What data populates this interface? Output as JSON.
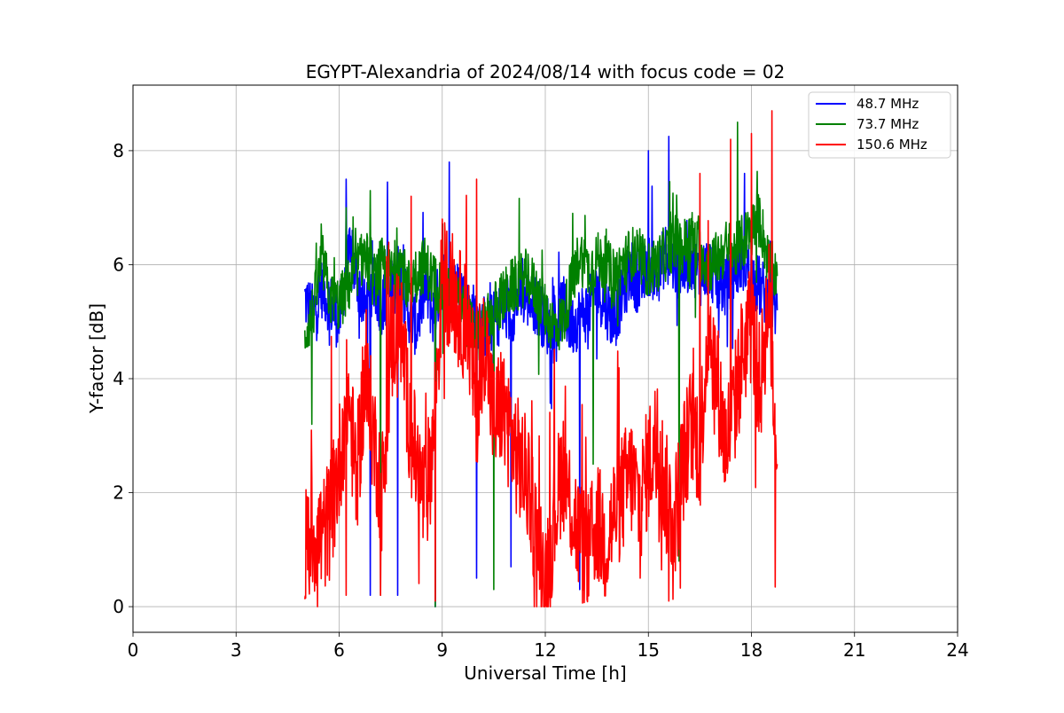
{
  "chart_data": {
    "type": "line",
    "title": "EGYPT-Alexandria of 2024/08/14 with focus code = 02",
    "xlabel": "Universal Time [h]",
    "ylabel": "Y-factor [dB]",
    "xlim": [
      0,
      24
    ],
    "ylim": [
      -0.45,
      9.15
    ],
    "xticks": [
      0,
      3,
      6,
      9,
      12,
      15,
      18,
      21,
      24
    ],
    "yticks": [
      0,
      2,
      4,
      6,
      8
    ],
    "grid": true,
    "legend_position": "top-right",
    "series": [
      {
        "name": "  48.7 MHz",
        "color": "#0000ff",
        "x": [
          5.0,
          5.25,
          5.5,
          5.75,
          6.0,
          6.25,
          6.5,
          6.75,
          7.0,
          7.25,
          7.5,
          7.75,
          8.0,
          8.25,
          8.5,
          8.75,
          9.0,
          9.25,
          9.5,
          9.75,
          10.0,
          10.25,
          10.5,
          10.75,
          11.0,
          11.25,
          11.5,
          11.75,
          12.0,
          12.25,
          12.5,
          12.75,
          13.0,
          13.25,
          13.5,
          13.75,
          14.0,
          14.25,
          14.5,
          14.75,
          15.0,
          15.25,
          15.5,
          15.75,
          16.0,
          16.25,
          16.5,
          16.75,
          17.0,
          17.25,
          17.5,
          17.75,
          18.0,
          18.25,
          18.5,
          18.75
        ],
        "y": [
          5.4,
          5.1,
          5.6,
          5.3,
          5.0,
          6.2,
          5.8,
          5.2,
          5.6,
          5.3,
          5.5,
          5.9,
          5.2,
          4.9,
          5.6,
          5.1,
          5.8,
          5.4,
          5.7,
          5.2,
          5.1,
          4.9,
          5.0,
          5.2,
          5.1,
          5.5,
          5.4,
          5.3,
          5.0,
          4.8,
          5.3,
          4.9,
          5.1,
          5.2,
          5.6,
          5.3,
          5.0,
          5.5,
          5.9,
          5.6,
          6.0,
          5.8,
          6.2,
          6.0,
          5.9,
          6.1,
          5.8,
          6.0,
          5.7,
          5.6,
          5.9,
          6.1,
          5.8,
          5.6,
          5.4,
          5.2
        ],
        "peaks": [
          [
            6.2,
            7.5
          ],
          [
            7.4,
            7.45
          ],
          [
            9.2,
            7.8
          ],
          [
            15.6,
            8.25
          ],
          [
            15.0,
            8.0
          ],
          [
            17.8,
            7.6
          ]
        ],
        "dips": [
          [
            6.9,
            0.2
          ],
          [
            7.7,
            0.2
          ],
          [
            8.8,
            0.0
          ],
          [
            10.0,
            0.5
          ],
          [
            11.0,
            0.7
          ],
          [
            13.0,
            0.3
          ]
        ]
      },
      {
        "name": "  73.7 MHz",
        "color": "#008000",
        "x": [
          5.0,
          5.25,
          5.5,
          5.75,
          6.0,
          6.25,
          6.5,
          6.75,
          7.0,
          7.25,
          7.5,
          7.75,
          8.0,
          8.25,
          8.5,
          8.75,
          9.0,
          9.25,
          9.5,
          9.75,
          10.0,
          10.25,
          10.5,
          10.75,
          11.0,
          11.25,
          11.5,
          11.75,
          12.0,
          12.25,
          12.5,
          12.75,
          13.0,
          13.25,
          13.5,
          13.75,
          14.0,
          14.25,
          14.5,
          14.75,
          15.0,
          15.25,
          15.5,
          15.75,
          16.0,
          16.25,
          16.5,
          16.75,
          17.0,
          17.25,
          17.5,
          17.75,
          18.0,
          18.25,
          18.5,
          18.75
        ],
        "y": [
          4.8,
          5.2,
          6.1,
          5.4,
          5.3,
          5.6,
          5.9,
          6.2,
          5.7,
          6.0,
          5.8,
          6.1,
          5.6,
          5.9,
          6.0,
          5.7,
          5.6,
          5.4,
          5.3,
          5.0,
          4.7,
          4.9,
          5.2,
          5.4,
          5.6,
          5.7,
          5.8,
          5.5,
          5.2,
          4.9,
          5.0,
          5.6,
          6.2,
          5.9,
          6.1,
          6.0,
          5.8,
          6.0,
          6.2,
          6.1,
          5.9,
          6.0,
          6.2,
          6.4,
          6.3,
          6.5,
          6.2,
          6.0,
          6.1,
          6.3,
          6.2,
          6.4,
          6.6,
          6.8,
          6.0,
          5.8
        ],
        "peaks": [
          [
            6.9,
            7.3
          ],
          [
            17.6,
            8.5
          ],
          [
            6.2,
            7.0
          ],
          [
            12.8,
            6.9
          ]
        ],
        "dips": [
          [
            5.2,
            3.2
          ],
          [
            7.2,
            0.2
          ],
          [
            8.8,
            0.0
          ],
          [
            10.5,
            0.3
          ],
          [
            13.4,
            2.5
          ],
          [
            15.9,
            0.8
          ]
        ]
      },
      {
        "name": "  150.6 MHz",
        "color": "#ff0000",
        "x": [
          5.0,
          5.25,
          5.5,
          5.75,
          6.0,
          6.25,
          6.5,
          6.75,
          7.0,
          7.25,
          7.5,
          7.75,
          8.0,
          8.25,
          8.5,
          8.75,
          9.0,
          9.25,
          9.5,
          9.75,
          10.0,
          10.25,
          10.5,
          10.75,
          11.0,
          11.25,
          11.5,
          11.75,
          12.0,
          12.25,
          12.5,
          12.75,
          13.0,
          13.25,
          13.5,
          13.75,
          14.0,
          14.25,
          14.5,
          14.75,
          15.0,
          15.25,
          15.5,
          15.75,
          16.0,
          16.25,
          16.5,
          16.75,
          17.0,
          17.25,
          17.5,
          17.75,
          18.0,
          18.25,
          18.5,
          18.75
        ],
        "y": [
          1.0,
          1.3,
          1.2,
          1.6,
          2.5,
          3.8,
          2.2,
          4.0,
          3.0,
          2.0,
          4.5,
          5.2,
          3.5,
          2.5,
          1.8,
          3.0,
          5.8,
          5.6,
          5.2,
          4.9,
          3.5,
          4.8,
          3.2,
          3.6,
          3.0,
          2.5,
          2.2,
          1.2,
          0.5,
          1.5,
          2.5,
          1.8,
          1.2,
          0.9,
          1.5,
          1.1,
          1.6,
          2.0,
          2.3,
          1.8,
          2.5,
          3.0,
          2.0,
          1.5,
          2.5,
          3.2,
          2.8,
          5.0,
          4.0,
          2.8,
          3.5,
          4.5,
          5.0,
          3.8,
          5.5,
          2.5
        ],
        "peaks": [
          [
            9.0,
            6.8
          ],
          [
            10.0,
            7.5
          ],
          [
            8.1,
            7.2
          ],
          [
            18.6,
            8.7
          ],
          [
            17.4,
            8.2
          ],
          [
            18.0,
            8.3
          ],
          [
            16.5,
            7.6
          ]
        ],
        "dips": [
          [
            6.2,
            0.2
          ],
          [
            7.2,
            0.2
          ],
          [
            8.8,
            0.1
          ],
          [
            11.9,
            0.0
          ],
          [
            15.6,
            0.1
          ],
          [
            12.2,
            0.3
          ]
        ]
      }
    ]
  }
}
